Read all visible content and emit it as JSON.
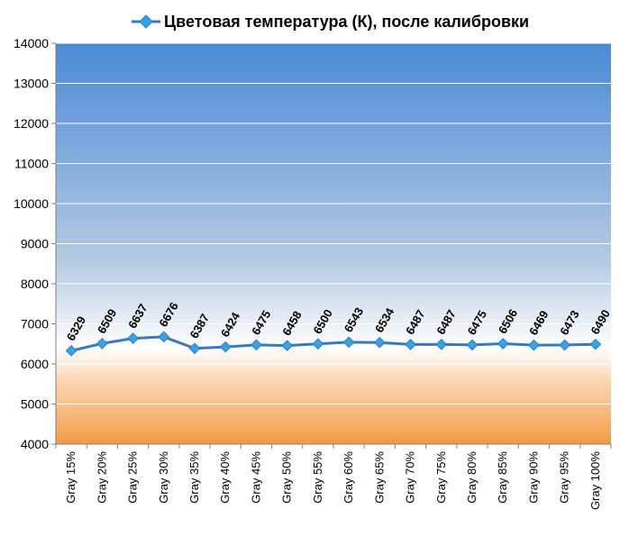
{
  "chart_data": {
    "type": "line",
    "title": "Цветовая температура (К), после калибровки",
    "series": [
      {
        "name": "Цветовая температура (К), после калибровки",
        "color": "#3a78c2",
        "marker_color": "#2fa6e6",
        "values": [
          6329,
          6509,
          6637,
          6676,
          6387,
          6424,
          6475,
          6458,
          6500,
          6543,
          6534,
          6487,
          6487,
          6475,
          6506,
          6469,
          6473,
          6490
        ],
        "value_labels": [
          "6329",
          "6509",
          "6637",
          "6676",
          "6387",
          "6424",
          "6475",
          "6458",
          "6500",
          "6543",
          "6534",
          "6487",
          "6487",
          "6475",
          "6506",
          "6469",
          "6473",
          "6490"
        ]
      }
    ],
    "categories": [
      "Gray 15%",
      "Gray 20%",
      "Gray 25%",
      "Gray 30%",
      "Gray 35%",
      "Gray 40%",
      "Gray 45%",
      "Gray 50%",
      "Gray 55%",
      "Gray 60%",
      "Gray 65%",
      "Gray 70%",
      "Gray 75%",
      "Gray 80%",
      "Gray 85%",
      "Gray 90%",
      "Gray 95%",
      "Gray 100%"
    ],
    "ylim": [
      4000,
      14000
    ],
    "yticks": [
      "4000",
      "5000",
      "6000",
      "7000",
      "8000",
      "9000",
      "10000",
      "11000",
      "12000",
      "13000",
      "14000"
    ],
    "grid": true,
    "legend": "top",
    "background_colors": {
      "top": "#4a8ad8",
      "middle": "#ffffff",
      "bottom": "#f39a45"
    }
  }
}
